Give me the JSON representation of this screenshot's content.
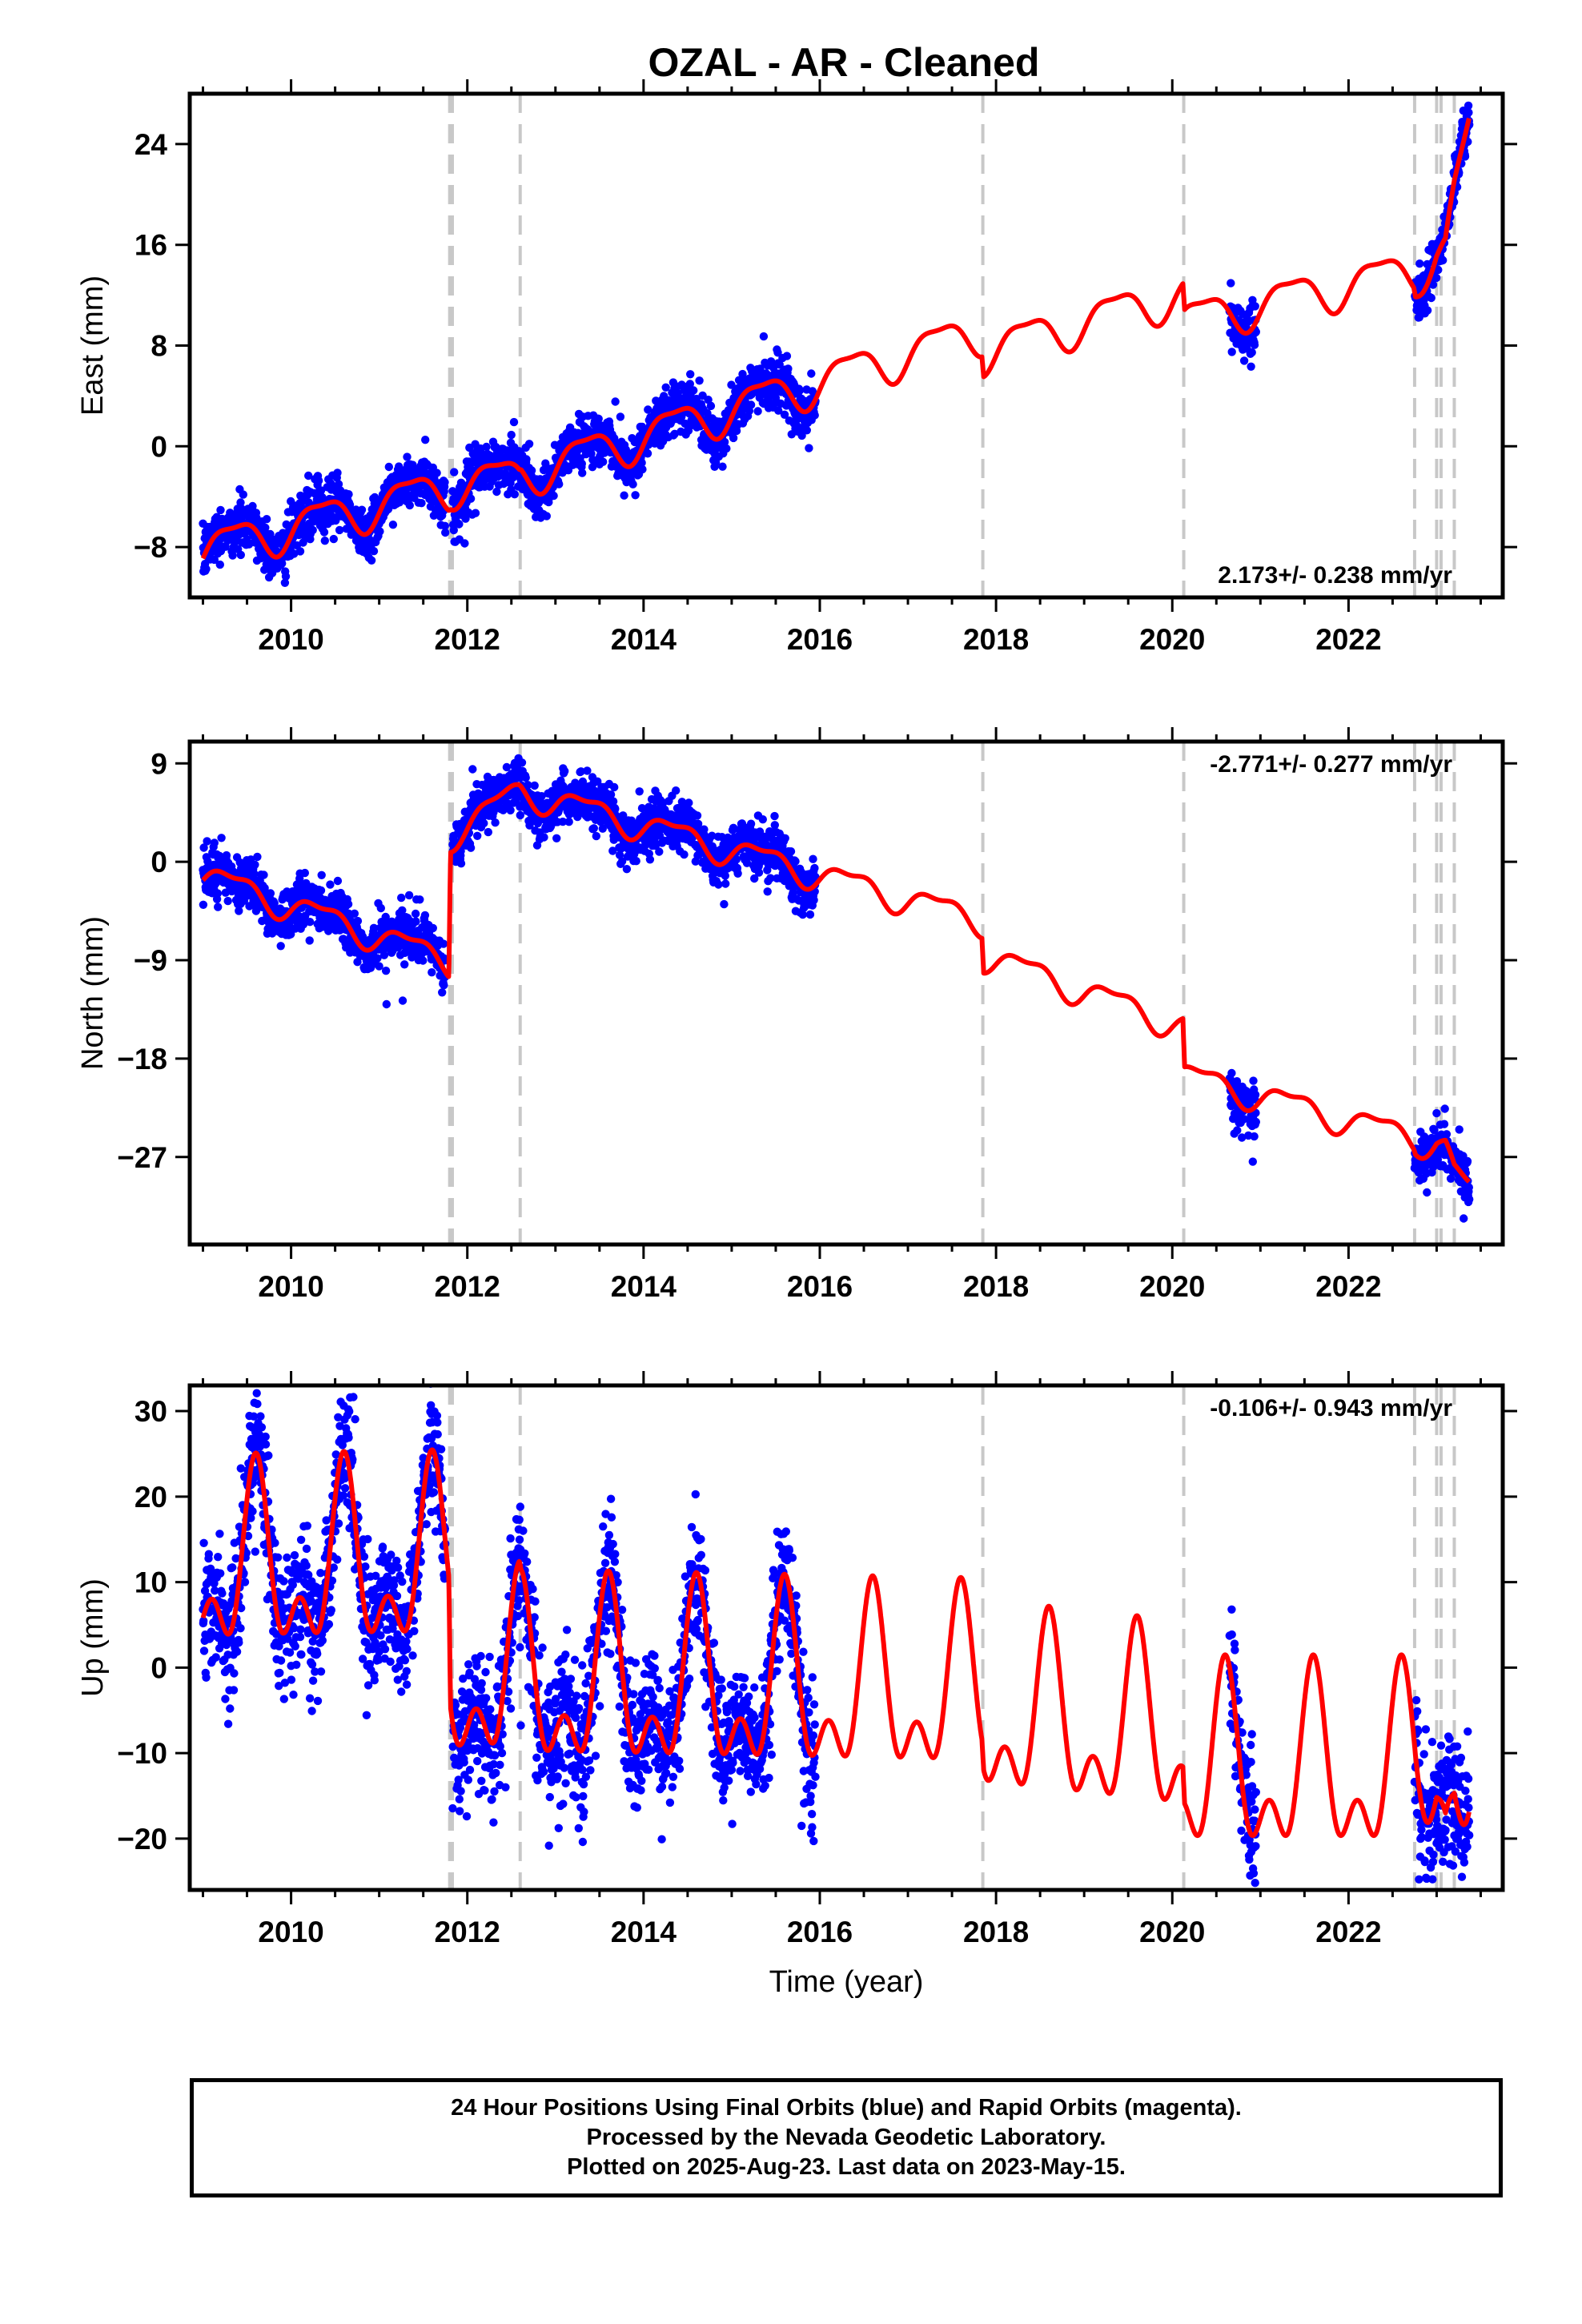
{
  "title": "OZAL  - AR - Cleaned",
  "x_axis_label": "Time (year)",
  "footer": {
    "line1": "24 Hour Positions Using Final Orbits (blue) and Rapid Orbits (magenta).",
    "line2": "Processed by the Nevada Geodetic Laboratory.",
    "line3": "Plotted on 2025-Aug-23. Last data on 2023-May-15."
  },
  "colors": {
    "observations": "#0000ff",
    "model": "#ff0000",
    "steps": "#c8c8c8",
    "frame": "#000000"
  },
  "chart_data": [
    {
      "type": "scatter",
      "ylabel": "East (mm)",
      "xlim": [
        2008.85,
        2023.75
      ],
      "ylim": [
        -12,
        28
      ],
      "x_ticks": [
        2010,
        2012,
        2014,
        2016,
        2018,
        2020,
        2022
      ],
      "y_ticks": [
        -8,
        0,
        8,
        16,
        24
      ],
      "rate_label": "2.173+/- 0.238 mm/yr",
      "rate_position": "bottom-right",
      "step_epochs": [
        2011.8,
        2011.83,
        2012.6,
        2017.85,
        2020.13,
        2022.75,
        2023.0,
        2023.05,
        2023.2
      ],
      "data_segments": [
        [
          2009.0,
          2015.95
        ],
        [
          2020.65,
          2020.95
        ],
        [
          2022.75,
          2023.37
        ]
      ],
      "model_knots": [
        [
          2009.0,
          -8.2
        ],
        [
          2011.79,
          -3.2
        ],
        [
          2011.81,
          -3.0
        ],
        [
          2012.59,
          -2.4
        ],
        [
          2012.61,
          -2.2
        ],
        [
          2017.84,
          9.2
        ],
        [
          2017.86,
          7.6
        ],
        [
          2020.12,
          12.2
        ],
        [
          2020.14,
          10.0
        ],
        [
          2022.74,
          14.0
        ],
        [
          2022.76,
          13.5
        ],
        [
          2023.0,
          15.8
        ],
        [
          2023.1,
          16.0
        ],
        [
          2023.2,
          20.0
        ],
        [
          2023.37,
          25.0
        ]
      ],
      "annual_amplitude": 1.6,
      "scatter_sd": 1.0
    },
    {
      "type": "scatter",
      "ylabel": "North (mm)",
      "xlim": [
        2008.85,
        2023.75
      ],
      "ylim": [
        -35,
        11
      ],
      "x_ticks": [
        2010,
        2012,
        2014,
        2016,
        2018,
        2020,
        2022
      ],
      "y_ticks": [
        -27,
        -18,
        -9,
        0,
        9
      ],
      "rate_label": "-2.771+/- 0.277 mm/yr",
      "rate_position": "top-right",
      "step_epochs": [
        2011.8,
        2011.83,
        2012.6,
        2017.85,
        2020.13,
        2022.75,
        2023.0,
        2023.05,
        2023.2
      ],
      "data_segments": [
        [
          2009.0,
          2015.95
        ],
        [
          2020.65,
          2020.95
        ],
        [
          2022.75,
          2023.37
        ]
      ],
      "model_knots": [
        [
          2009.0,
          -1.2
        ],
        [
          2011.79,
          -9.0
        ],
        [
          2011.81,
          2.5
        ],
        [
          2012.59,
          6.5
        ],
        [
          2012.61,
          6.5
        ],
        [
          2017.84,
          -5.3
        ],
        [
          2017.86,
          -8.5
        ],
        [
          2020.12,
          -15.0
        ],
        [
          2020.14,
          -19.5
        ],
        [
          2022.74,
          -25.2
        ],
        [
          2022.76,
          -25.5
        ],
        [
          2023.0,
          -25.3
        ],
        [
          2023.1,
          -26.0
        ],
        [
          2023.2,
          -28.5
        ],
        [
          2023.37,
          -30.0
        ]
      ],
      "annual_amplitude": 1.2,
      "scatter_sd": 1.1
    },
    {
      "type": "scatter",
      "ylabel": "Up (mm)",
      "xlim": [
        2008.85,
        2023.75
      ],
      "ylim": [
        -26,
        33
      ],
      "x_ticks": [
        2010,
        2012,
        2014,
        2016,
        2018,
        2020,
        2022
      ],
      "y_ticks": [
        -20,
        -10,
        0,
        10,
        20,
        30
      ],
      "rate_label": "-0.106+/- 0.943 mm/yr",
      "rate_position": "top-right",
      "step_epochs": [
        2011.8,
        2011.83,
        2012.6,
        2017.85,
        2020.13,
        2022.75,
        2023.0,
        2023.05,
        2023.2
      ],
      "data_segments": [
        [
          2009.0,
          2015.95
        ],
        [
          2020.65,
          2020.95
        ],
        [
          2022.75,
          2023.37
        ]
      ],
      "model_knots": [
        [
          2009.0,
          11.0
        ],
        [
          2011.79,
          11.5
        ],
        [
          2011.81,
          -2.0
        ],
        [
          2012.59,
          -1.5
        ],
        [
          2012.61,
          -2.5
        ],
        [
          2017.84,
          -3.5
        ],
        [
          2017.86,
          -6.0
        ],
        [
          2020.12,
          -8.5
        ],
        [
          2020.14,
          -12.5
        ],
        [
          2022.74,
          -12.5
        ],
        [
          2022.76,
          -12.5
        ],
        [
          2023.0,
          -10.0
        ],
        [
          2023.1,
          -14.0
        ],
        [
          2023.2,
          -9.5
        ],
        [
          2023.37,
          -12.5
        ]
      ],
      "annual_amplitude": 8.5,
      "scatter_sd": 3.8
    }
  ]
}
